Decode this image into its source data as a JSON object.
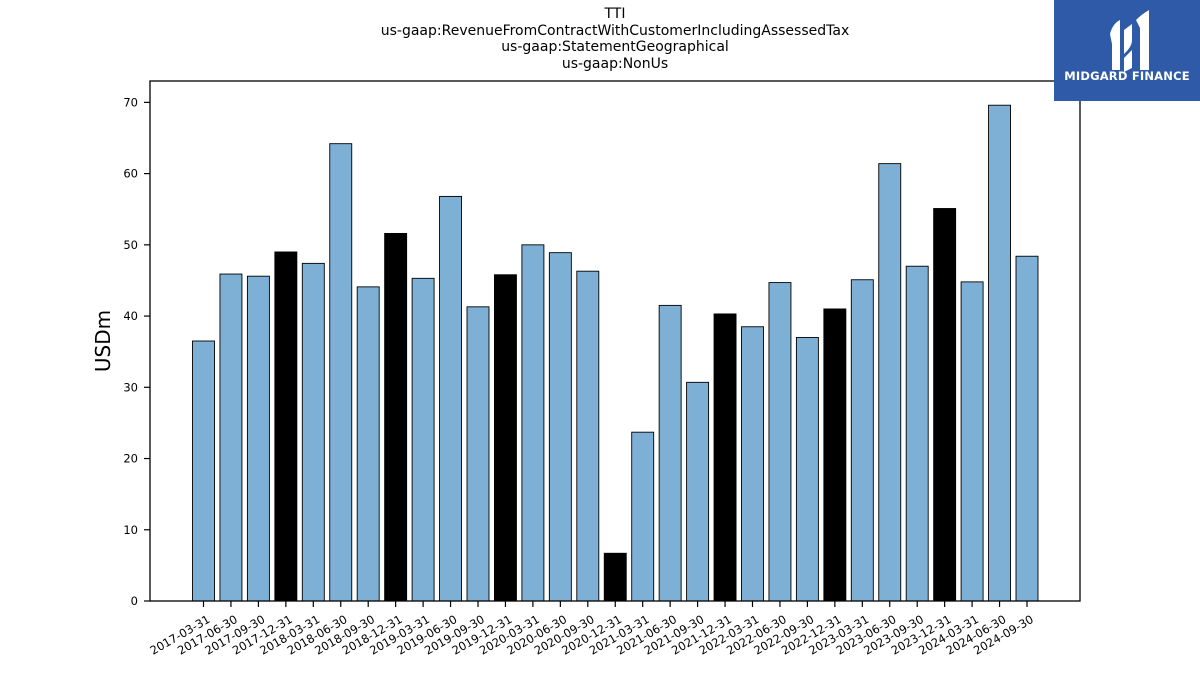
{
  "logo": {
    "text": "MIDGARD FINANCE",
    "icon": "midgard-logo-icon",
    "background": "#2f5aa8"
  },
  "chart_data": {
    "type": "bar",
    "title_lines": [
      "TTI",
      "us-gaap:RevenueFromContractWithCustomerIncludingAssessedTax",
      "us-gaap:StatementGeographical",
      "us-gaap:NonUs"
    ],
    "xlabel": "",
    "ylabel": "USDm",
    "ylim": [
      0,
      73
    ],
    "yticks": [
      0,
      10,
      20,
      30,
      40,
      50,
      60,
      70
    ],
    "grid": false,
    "colors": {
      "quarter": "#7eb0d5",
      "year_end": "#000000"
    },
    "categories": [
      "2017-03-31",
      "2017-06-30",
      "2017-09-30",
      "2017-12-31",
      "2018-03-31",
      "2018-06-30",
      "2018-09-30",
      "2018-12-31",
      "2019-03-31",
      "2019-06-30",
      "2019-09-30",
      "2019-12-31",
      "2020-03-31",
      "2020-06-30",
      "2020-09-30",
      "2020-12-31",
      "2021-03-31",
      "2021-06-30",
      "2021-09-30",
      "2021-12-31",
      "2022-03-31",
      "2022-06-30",
      "2022-09-30",
      "2022-12-31",
      "2023-03-31",
      "2023-06-30",
      "2023-09-30",
      "2023-12-31",
      "2024-03-31",
      "2024-06-30",
      "2024-09-30"
    ],
    "values": [
      36.5,
      45.9,
      45.6,
      49.0,
      47.4,
      64.2,
      44.1,
      51.6,
      45.3,
      56.8,
      41.3,
      45.8,
      50.0,
      48.9,
      46.3,
      6.7,
      23.7,
      41.5,
      30.7,
      40.3,
      38.5,
      44.7,
      37.0,
      41.0,
      45.1,
      61.4,
      47.0,
      55.1,
      44.8,
      69.6,
      48.4
    ]
  }
}
